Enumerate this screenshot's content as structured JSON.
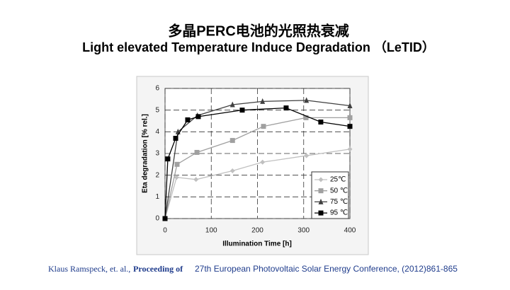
{
  "chart_data": {
    "type": "line",
    "title": "多晶PERC电池的光照热衰减",
    "subtitle": "Light elevated Temperature Induce Degradation （LeTID）",
    "xlabel": "Illumination Time [h]",
    "ylabel": "Eta degradation [% rel.]",
    "xlim": [
      0,
      400
    ],
    "xticks": [
      0,
      100,
      200,
      300,
      400
    ],
    "ylim": [
      0,
      6
    ],
    "yticks": [
      0,
      1,
      2,
      3,
      4,
      5,
      6
    ],
    "grid": true,
    "legend": "lower-right",
    "series": [
      {
        "name": "25℃",
        "color": "#c0c0c0",
        "marker": "diamond",
        "x": [
          0,
          25,
          67,
          146,
          211,
          306,
          400
        ],
        "values": [
          0,
          1.9,
          1.8,
          2.2,
          2.6,
          2.9,
          3.2
        ]
      },
      {
        "name": "50 ℃",
        "color": "#a0a0a0",
        "marker": "square",
        "x": [
          0,
          26,
          69,
          146,
          213,
          305,
          400
        ],
        "values": [
          0,
          2.5,
          3.05,
          3.6,
          4.25,
          4.65,
          4.65
        ]
      },
      {
        "name": "75 ℃",
        "color": "#404040",
        "marker": "triangle",
        "x": [
          0,
          28,
          70,
          146,
          211,
          306,
          400
        ],
        "values": [
          0,
          4.0,
          4.75,
          5.25,
          5.4,
          5.45,
          5.2
        ]
      },
      {
        "name": "95 ℃",
        "color": "#000000",
        "marker": "square",
        "x": [
          0,
          6,
          23,
          49,
          72,
          167,
          262,
          337,
          400
        ],
        "values": [
          0,
          2.75,
          3.7,
          4.55,
          4.7,
          5.0,
          5.1,
          4.45,
          4.25
        ]
      }
    ]
  },
  "footer": {
    "authors": "Klaus Ramspeck,  et. al.,",
    "proceeding": "Proceeding of",
    "conference": "27th European Photovoltaic Solar Energy Conference, (2012)861-865"
  }
}
